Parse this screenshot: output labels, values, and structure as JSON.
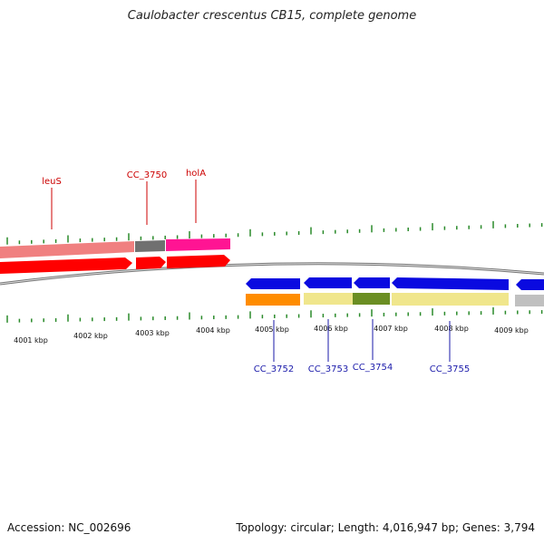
{
  "title": "Caulobacter crescentus CB15, complete genome",
  "footer": {
    "accession": "Accession: NC_002696",
    "summary": "Topology: circular; Length: 4,016,947 bp; Genes: 3,794"
  },
  "colors": {
    "label_top": "#cc0000",
    "label_bottom": "#1a1aaa",
    "tick": "#2a8a2a",
    "backbone": "#777777",
    "red": "#ff0000",
    "salmon": "#f08080",
    "gray": "#707070",
    "magenta": "#ff1493",
    "blue": "#0a0ae0",
    "orange": "#ff8c00",
    "khaki": "#f0e68c",
    "olive": "#6b8e23",
    "lightgray": "#c0c0c0"
  },
  "kbp_labels": [
    "4001 kbp",
    "4002 kbp",
    "4003 kbp",
    "4004 kbp",
    "4005 kbp",
    "4006 kbp",
    "4007 kbp",
    "4008 kbp",
    "4009 kbp"
  ],
  "gene_labels_top": [
    "leuS",
    "CC_3750",
    "holA"
  ],
  "gene_labels_bottom": [
    "CC_3752",
    "CC_3753",
    "CC_3754",
    "CC_3755"
  ]
}
